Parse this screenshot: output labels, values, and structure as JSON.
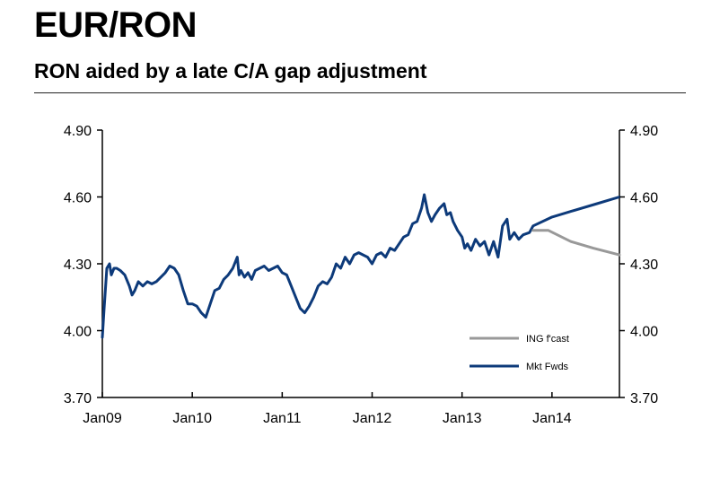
{
  "header": {
    "title": "EUR/RON",
    "subtitle": "RON aided by a late C/A gap adjustment"
  },
  "chart_data": {
    "type": "line",
    "title": "",
    "xlabel": "",
    "ylabel": "",
    "ylim": [
      3.7,
      4.9
    ],
    "y_ticks": [
      "4.90",
      "4.60",
      "4.30",
      "4.00",
      "3.70"
    ],
    "y_tick_values": [
      4.9,
      4.6,
      4.3,
      4.0,
      3.7
    ],
    "x_ticks": [
      "Jan09",
      "Jan10",
      "Jan11",
      "Jan12",
      "Jan13",
      "Jan14"
    ],
    "x_tick_values": [
      2009,
      2010,
      2011,
      2012,
      2013,
      2014
    ],
    "xlim": [
      2009,
      2014.75
    ],
    "dual_y_axis": true,
    "grid": false,
    "legend_position": "bottom-right",
    "series": [
      {
        "name": "ING f'cast",
        "color": "#999999",
        "x": [
          2013.79,
          2013.96,
          2014.21,
          2014.46,
          2014.75
        ],
        "y": [
          4.45,
          4.45,
          4.4,
          4.37,
          4.34
        ]
      },
      {
        "name": "Mkt Fwds",
        "color": "#0d3a7a",
        "x": [
          2009.0,
          2009.02,
          2009.05,
          2009.08,
          2009.1,
          2009.13,
          2009.16,
          2009.2,
          2009.25,
          2009.3,
          2009.33,
          2009.36,
          2009.4,
          2009.45,
          2009.5,
          2009.55,
          2009.6,
          2009.65,
          2009.7,
          2009.75,
          2009.8,
          2009.85,
          2009.9,
          2009.95,
          2010.0,
          2010.05,
          2010.1,
          2010.15,
          2010.2,
          2010.25,
          2010.3,
          2010.35,
          2010.4,
          2010.45,
          2010.5,
          2010.52,
          2010.54,
          2010.58,
          2010.62,
          2010.66,
          2010.7,
          2010.75,
          2010.8,
          2010.85,
          2010.9,
          2010.95,
          2011.0,
          2011.05,
          2011.1,
          2011.15,
          2011.2,
          2011.25,
          2011.3,
          2011.35,
          2011.4,
          2011.45,
          2011.5,
          2011.55,
          2011.6,
          2011.65,
          2011.7,
          2011.75,
          2011.8,
          2011.85,
          2011.9,
          2011.95,
          2012.0,
          2012.05,
          2012.1,
          2012.15,
          2012.2,
          2012.25,
          2012.3,
          2012.35,
          2012.4,
          2012.45,
          2012.5,
          2012.55,
          2012.58,
          2012.62,
          2012.66,
          2012.7,
          2012.75,
          2012.8,
          2012.83,
          2012.87,
          2012.9,
          2012.95,
          2013.0,
          2013.03,
          2013.06,
          2013.1,
          2013.15,
          2013.2,
          2013.25,
          2013.3,
          2013.35,
          2013.4,
          2013.45,
          2013.5,
          2013.53,
          2013.58,
          2013.63,
          2013.68,
          2013.75,
          2013.79,
          2014.0,
          2014.25,
          2014.5,
          2014.75
        ],
        "y": [
          3.97,
          4.1,
          4.28,
          4.3,
          4.25,
          4.28,
          4.28,
          4.27,
          4.25,
          4.2,
          4.16,
          4.18,
          4.22,
          4.2,
          4.22,
          4.21,
          4.22,
          4.24,
          4.26,
          4.29,
          4.28,
          4.25,
          4.18,
          4.12,
          4.12,
          4.11,
          4.08,
          4.06,
          4.12,
          4.18,
          4.19,
          4.23,
          4.25,
          4.28,
          4.33,
          4.25,
          4.27,
          4.24,
          4.26,
          4.23,
          4.27,
          4.28,
          4.29,
          4.27,
          4.28,
          4.29,
          4.26,
          4.25,
          4.2,
          4.15,
          4.1,
          4.08,
          4.11,
          4.15,
          4.2,
          4.22,
          4.21,
          4.24,
          4.3,
          4.28,
          4.33,
          4.3,
          4.34,
          4.35,
          4.34,
          4.33,
          4.3,
          4.34,
          4.35,
          4.33,
          4.37,
          4.36,
          4.39,
          4.42,
          4.43,
          4.48,
          4.49,
          4.55,
          4.61,
          4.53,
          4.49,
          4.52,
          4.55,
          4.57,
          4.52,
          4.53,
          4.49,
          4.45,
          4.42,
          4.37,
          4.39,
          4.36,
          4.41,
          4.38,
          4.4,
          4.34,
          4.4,
          4.33,
          4.47,
          4.5,
          4.41,
          4.44,
          4.41,
          4.43,
          4.44,
          4.47,
          4.51,
          4.54,
          4.57,
          4.6
        ]
      }
    ]
  }
}
